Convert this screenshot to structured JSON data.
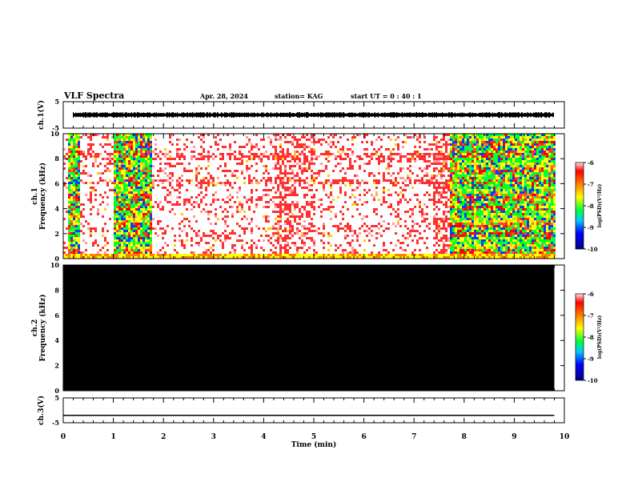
{
  "header": {
    "title": "VLF Spectra",
    "date": "Apr. 28, 2024",
    "station": "station= KAG",
    "start_ut": "start  UT =   0 : 40 : 1"
  },
  "chart_data": [
    {
      "type": "line",
      "panel": "ch.1 waveform",
      "ylabel": "ch.1(V)",
      "ylim": [
        -5,
        5
      ],
      "yticks": [
        5,
        -5
      ],
      "xlim": [
        0,
        10
      ],
      "x": [
        0.2,
        9.8
      ],
      "amplitude_V": 0.9
    },
    {
      "type": "heatmap",
      "panel": "ch.1 spectrogram",
      "ylabel_top": "ch.1",
      "ylabel": "Frequency (kHz)",
      "ylim": [
        0,
        10
      ],
      "yticks": [
        0,
        2,
        4,
        6,
        8,
        10
      ],
      "xlim": [
        0,
        10
      ],
      "colorbar": {
        "label": "log(PSD)(V²/Hz)",
        "range": [
          -10,
          -6
        ],
        "ticks": [
          -6,
          -7,
          -8,
          -9,
          -10
        ]
      },
      "dense_intervals_min": [
        [
          0.05,
          0.3
        ],
        [
          1.0,
          1.75
        ],
        [
          7.7,
          9.8
        ]
      ],
      "noise_floor_band_kHz": [
        0,
        0.4
      ]
    },
    {
      "type": "heatmap",
      "panel": "ch.2 spectrogram",
      "ylabel_top": "ch.2",
      "ylabel": "Frequency (kHz)",
      "ylim": [
        0,
        10
      ],
      "yticks": [
        0,
        2,
        4,
        6,
        8,
        10
      ],
      "xlim": [
        0,
        10
      ],
      "colorbar": {
        "label": "log(PSD)(V²/Hz)",
        "range": [
          -10,
          -6
        ],
        "ticks": [
          -6,
          -7,
          -8,
          -9,
          -10
        ]
      },
      "fill": "saturated black (no signal)"
    },
    {
      "type": "line",
      "panel": "ch.3 waveform",
      "ylabel": "ch.3(V)",
      "ylim": [
        -5,
        5
      ],
      "yticks": [
        5,
        -5
      ],
      "xlim": [
        0,
        10
      ],
      "x": [
        0,
        9.8
      ],
      "y": [
        -2,
        -2
      ]
    }
  ],
  "xaxis": {
    "label": "Time (min)",
    "ticks": [
      "0",
      "1",
      "2",
      "3",
      "4",
      "5",
      "6",
      "7",
      "8",
      "9",
      "10"
    ]
  }
}
